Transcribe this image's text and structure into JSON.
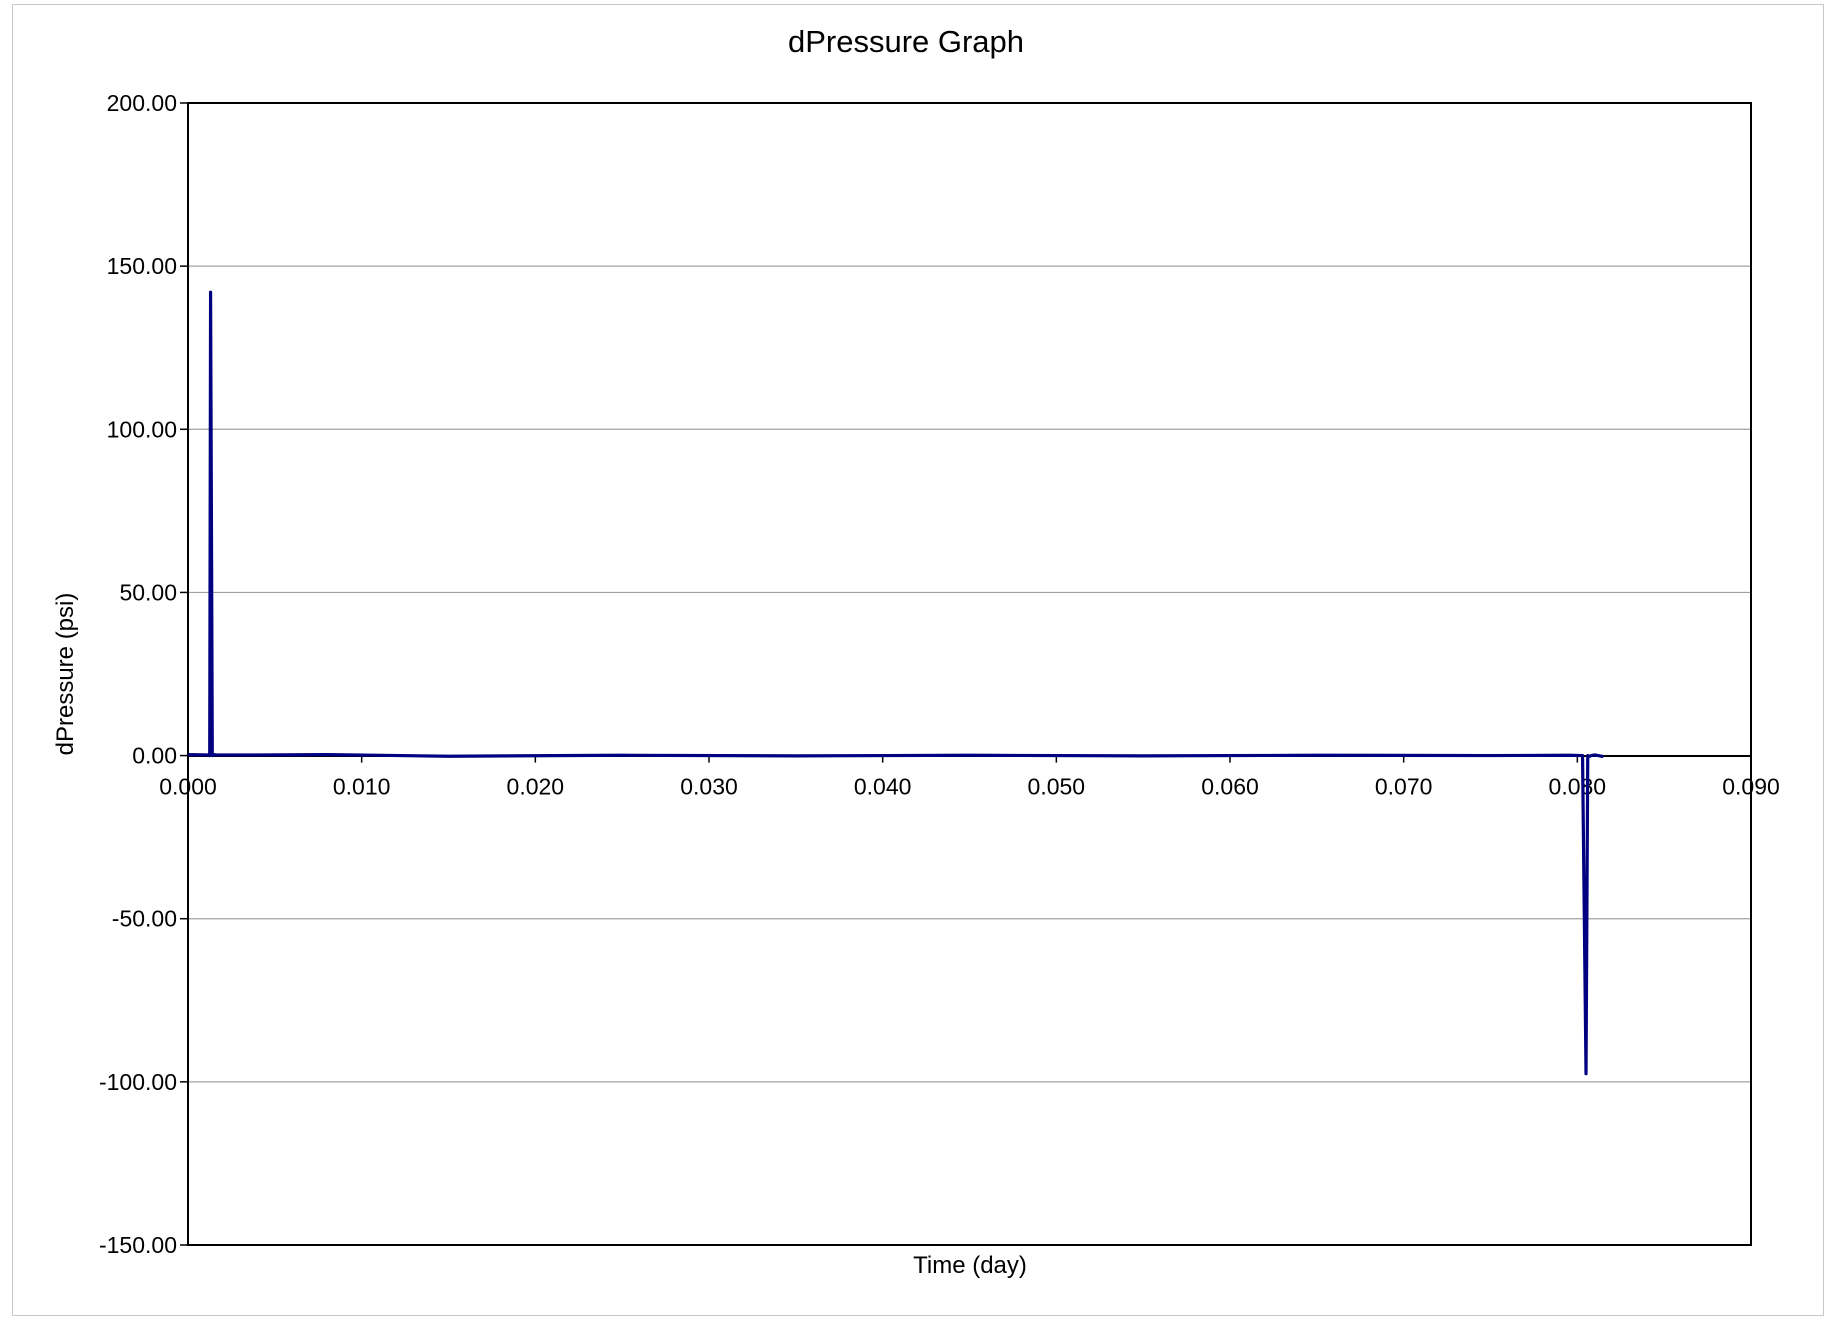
{
  "chart_data": {
    "type": "line",
    "title": "dPressure Graph",
    "xlabel": "Time (day)",
    "ylabel": "dPressure (psi)",
    "xlim": [
      0.0,
      0.09
    ],
    "ylim": [
      -150.0,
      200.0
    ],
    "x_ticks": [
      "0.000",
      "0.010",
      "0.020",
      "0.030",
      "0.040",
      "0.050",
      "0.060",
      "0.070",
      "0.080",
      "0.090"
    ],
    "y_ticks": [
      "200.00",
      "150.00",
      "100.00",
      "50.00",
      "0.00",
      "-50.00",
      "-100.00",
      "-150.00"
    ],
    "grid": "horizontal",
    "legend": "none",
    "series": [
      {
        "color": "#000080",
        "x": [
          0.0,
          0.0012,
          0.00125,
          0.0013,
          0.0014,
          0.00145,
          0.0015,
          0.0016,
          0.004,
          0.008,
          0.015,
          0.025,
          0.035,
          0.045,
          0.055,
          0.065,
          0.075,
          0.0795,
          0.0803,
          0.0805,
          0.0806,
          0.0807,
          0.0808,
          0.081,
          0.0815
        ],
        "y": [
          0.3,
          0.2,
          0.0,
          142.0,
          0.0,
          0.0,
          0.3,
          0.2,
          0.2,
          0.3,
          -0.2,
          0.1,
          -0.1,
          0.1,
          -0.1,
          0.1,
          0.0,
          0.1,
          0.0,
          -97.5,
          0.0,
          -0.2,
          0.0,
          0.2,
          -0.3
        ]
      }
    ]
  }
}
